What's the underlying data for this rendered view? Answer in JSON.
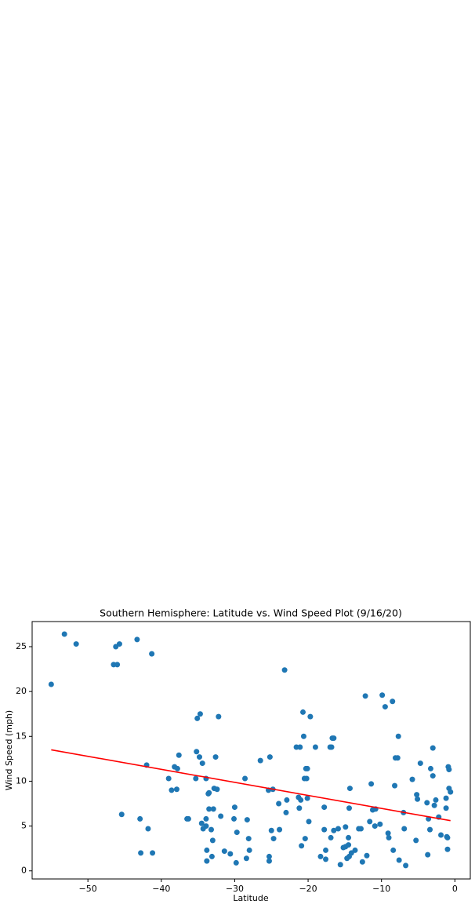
{
  "chart_data": {
    "type": "scatter",
    "title": "Southern Hemisphere: Latitude vs. Wind Speed Plot (9/16/20)",
    "x_label": "Latitude",
    "y_label": "Wind Speed (mph)",
    "color": "#1f77b4",
    "x": [
      -55,
      -53.2,
      -51.6,
      -46.5,
      -46.2,
      -46,
      -45.7,
      -45.4,
      -43.3,
      -42.9,
      -42.8,
      -42,
      -41.8,
      -41.3,
      -41.2,
      -39,
      -38.6,
      -38.2,
      -37.9,
      -37.8,
      -37.6,
      -36.5,
      -36.3,
      -35.3,
      -35.2,
      -35.1,
      -34.8,
      -34.7,
      -34.5,
      -34.4,
      -34.3,
      -33.9,
      -33.9,
      -33.9,
      -33.8,
      -33.8,
      -33.6,
      -33.5,
      -33.5,
      -33.2,
      -33.1,
      -33,
      -32.9,
      -32.8,
      -32.6,
      -32.4,
      -32.2,
      -31.9,
      -31.4,
      -30.6,
      -30.1,
      -30,
      -29.7,
      -29.8,
      -28.6,
      -28.4,
      -28.3,
      -28.1,
      -28,
      -26.5,
      -25.4,
      -25.3,
      -25.3,
      -25.2,
      -25,
      -24.8,
      -24.7,
      -24,
      -23.9,
      -23.2,
      -23,
      -22.9,
      -21.6,
      -21.3,
      -21.2,
      -21.1,
      -21,
      -20.9,
      -20.7,
      -20.6,
      -20.5,
      -20.4,
      -20.3,
      -20.2,
      -20.1,
      -20.1,
      -19.9,
      -19.7,
      -19,
      -18.3,
      -17.8,
      -17.8,
      -17.6,
      -17.6,
      -17,
      -16.9,
      -16.8,
      -16.7,
      -16.5,
      -16.5,
      -15.9,
      -15.6,
      -15.2,
      -14.9,
      -14.9,
      -14.7,
      -14.5,
      -14.5,
      -14.4,
      -14.4,
      -14.3,
      -14.1,
      -13.6,
      -13.1,
      -12.8,
      -12.6,
      -12.2,
      -12,
      -11.6,
      -11.4,
      -11.2,
      -10.9,
      -10.8,
      -10.2,
      -9.9,
      -9.5,
      -9.1,
      -9,
      -8.5,
      -8.4,
      -8.2,
      -8.1,
      -7.8,
      -7.7,
      -7.6,
      -7,
      -6.9,
      -6.7,
      -5.8,
      -5.3,
      -5.2,
      -5.1,
      -4.7,
      -3.8,
      -3.7,
      -3.6,
      -3.4,
      -3.3,
      -3,
      -3,
      -2.8,
      -2.6,
      -2.2,
      -1.9,
      -1.2,
      -1.2,
      -1.1,
      -1,
      -1,
      -0.9,
      -0.8,
      -0.8,
      -0.6
    ],
    "values": [
      20.8,
      26.4,
      25.3,
      23,
      25,
      23,
      25.3,
      6.3,
      25.8,
      5.8,
      2,
      11.8,
      4.7,
      24.2,
      2,
      10.3,
      9,
      11.6,
      9.1,
      11.4,
      12.9,
      5.8,
      5.8,
      10.3,
      13.3,
      17,
      12.7,
      17.5,
      5.3,
      12,
      4.7,
      10.3,
      5.8,
      5,
      2.3,
      1.1,
      8.6,
      8.7,
      6.9,
      4.6,
      1.6,
      3.4,
      6.9,
      9.2,
      12.7,
      9.1,
      17.2,
      6.1,
      2.2,
      1.9,
      5.8,
      7.1,
      4.3,
      0.9,
      10.3,
      1.4,
      5.7,
      3.6,
      2.3,
      12.3,
      9,
      1.6,
      1.1,
      12.7,
      4.5,
      9.1,
      3.6,
      7.5,
      4.6,
      22.4,
      6.5,
      7.9,
      13.8,
      8.2,
      7,
      13.8,
      7.9,
      2.8,
      17.7,
      15,
      10.3,
      3.6,
      11.4,
      10.3,
      11.4,
      8.1,
      5.5,
      17.2,
      13.8,
      1.6,
      7.1,
      4.6,
      2.3,
      1.3,
      13.8,
      3.7,
      13.8,
      14.8,
      14.8,
      4.5,
      4.7,
      0.7,
      2.6,
      2.7,
      4.9,
      1.4,
      3.7,
      2.9,
      7,
      1.6,
      9.2,
      2,
      2.3,
      4.7,
      4.7,
      1,
      19.5,
      1.7,
      5.5,
      9.7,
      6.8,
      5,
      6.9,
      5.2,
      19.6,
      18.3,
      4.2,
      3.7,
      18.9,
      2.3,
      9.5,
      12.6,
      12.6,
      15,
      1.2,
      6.5,
      4.7,
      0.6,
      10.2,
      3.4,
      8.5,
      8,
      12,
      7.6,
      1.8,
      5.8,
      4.6,
      11.4,
      13.7,
      10.6,
      7.3,
      7.9,
      6,
      4,
      8.1,
      7,
      3.8,
      3.7,
      2.4,
      11.6,
      9.2,
      11.3,
      8.8
    ],
    "trend_line": {
      "x": [
        -55,
        -0.6
      ],
      "values": [
        13.5,
        5.6
      ],
      "color": "#ff0000"
    },
    "xlim": [
      -57.6,
      2.1
    ],
    "ylim": [
      -0.9,
      27.8
    ],
    "xticks": [
      {
        "value": -50,
        "label": "−50"
      },
      {
        "value": -40,
        "label": "−40"
      },
      {
        "value": -30,
        "label": "−30"
      },
      {
        "value": -20,
        "label": "−20"
      },
      {
        "value": -10,
        "label": "−10"
      },
      0
    ],
    "yticks": [
      0,
      5,
      10,
      15,
      20,
      25
    ]
  }
}
